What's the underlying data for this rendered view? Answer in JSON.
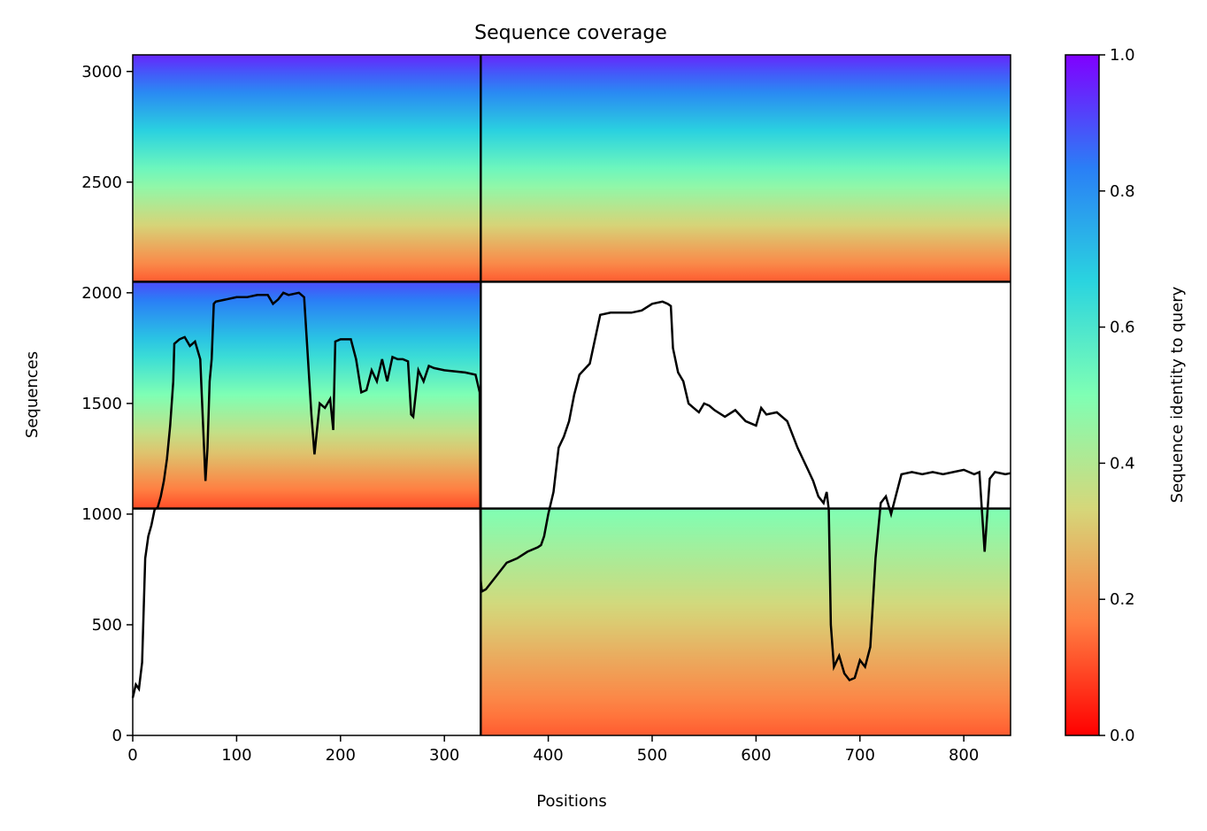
{
  "chart_data": {
    "type": "heatmap",
    "title": "Sequence coverage",
    "xlabel": "Positions",
    "ylabel": "Sequences",
    "xlim": [
      0,
      845
    ],
    "ylim": [
      0,
      3075
    ],
    "xticks": [
      0,
      100,
      200,
      300,
      400,
      500,
      600,
      700,
      800
    ],
    "yticks": [
      0,
      500,
      1000,
      1500,
      2000,
      2500,
      3000
    ],
    "colorbar": {
      "label": "Sequence identity to query",
      "range": [
        0,
        1
      ],
      "ticks": [
        0.0,
        0.2,
        0.4,
        0.6,
        0.8,
        1.0
      ],
      "tick_labels": [
        "0.0",
        "0.2",
        "0.4",
        "0.6",
        "0.8",
        "1.0"
      ],
      "colormap": [
        "#ff0000",
        "#ff7f42",
        "#d5d77a",
        "#7fffb4",
        "#2ad4df",
        "#2a7ff6",
        "#8000ff"
      ]
    },
    "block_boundaries": {
      "x": [
        335
      ],
      "y": [
        1025,
        2050
      ]
    },
    "coverage_blocks": [
      {
        "x": [
          0,
          335
        ],
        "y": [
          2050,
          3075
        ],
        "identity": [
          0.95,
          0.12
        ],
        "coverage_start": 0,
        "coverage_end": 335
      },
      {
        "x": [
          335,
          845
        ],
        "y": [
          2050,
          3075
        ],
        "identity": [
          0.95,
          0.12
        ],
        "coverage_start": 335,
        "coverage_end": 845
      },
      {
        "x": [
          0,
          335
        ],
        "y": [
          1025,
          2050
        ],
        "identity": [
          0.9,
          0.1
        ],
        "coverage_start": 0,
        "coverage_end": 335
      },
      {
        "x": [
          335,
          845
        ],
        "y": [
          0,
          1025
        ],
        "identity": [
          0.5,
          0.12
        ],
        "coverage_start": 335,
        "coverage_end": 845
      }
    ],
    "coverage_line": {
      "x": [
        0,
        3,
        6,
        9,
        12,
        15,
        18,
        21,
        24,
        27,
        30,
        33,
        36,
        39,
        40,
        45,
        50,
        55,
        60,
        65,
        70,
        72,
        74,
        76,
        78,
        80,
        90,
        100,
        110,
        120,
        130,
        135,
        140,
        145,
        150,
        160,
        165,
        170,
        172,
        175,
        180,
        185,
        190,
        193,
        195,
        200,
        210,
        215,
        220,
        225,
        230,
        235,
        240,
        245,
        250,
        255,
        260,
        265,
        268,
        270,
        275,
        280,
        285,
        290,
        300,
        310,
        320,
        330,
        334,
        335,
        336,
        340,
        350,
        360,
        370,
        380,
        390,
        393,
        396,
        400,
        405,
        410,
        415,
        420,
        425,
        430,
        440,
        450,
        460,
        480,
        490,
        500,
        510,
        515,
        518,
        520,
        525,
        530,
        535,
        540,
        545,
        550,
        555,
        560,
        570,
        580,
        590,
        600,
        605,
        610,
        620,
        630,
        640,
        645,
        650,
        655,
        660,
        665,
        668,
        670,
        672,
        675,
        680,
        685,
        690,
        695,
        700,
        705,
        710,
        715,
        720,
        725,
        730,
        740,
        750,
        760,
        770,
        780,
        790,
        800,
        810,
        815,
        820,
        825,
        830,
        840,
        845
      ],
      "y": [
        170,
        230,
        210,
        330,
        800,
        900,
        950,
        1020,
        1030,
        1080,
        1150,
        1250,
        1400,
        1600,
        1770,
        1790,
        1800,
        1760,
        1780,
        1700,
        1150,
        1300,
        1600,
        1700,
        1950,
        1960,
        1970,
        1980,
        1980,
        1990,
        1990,
        1950,
        1970,
        2000,
        1990,
        2000,
        1980,
        1600,
        1450,
        1270,
        1500,
        1480,
        1520,
        1380,
        1780,
        1790,
        1790,
        1700,
        1550,
        1560,
        1650,
        1600,
        1700,
        1600,
        1710,
        1700,
        1700,
        1690,
        1450,
        1440,
        1650,
        1600,
        1670,
        1660,
        1650,
        1645,
        1640,
        1630,
        1550,
        700,
        650,
        660,
        720,
        780,
        800,
        830,
        850,
        860,
        900,
        1000,
        1100,
        1300,
        1350,
        1420,
        1540,
        1630,
        1680,
        1900,
        1910,
        1910,
        1920,
        1950,
        1960,
        1950,
        1940,
        1750,
        1640,
        1600,
        1500,
        1480,
        1460,
        1500,
        1490,
        1470,
        1440,
        1470,
        1420,
        1400,
        1480,
        1450,
        1460,
        1420,
        1300,
        1250,
        1200,
        1150,
        1080,
        1050,
        1100,
        1020,
        500,
        310,
        360,
        280,
        250,
        260,
        340,
        310,
        400,
        800,
        1050,
        1080,
        1000,
        1180,
        1190,
        1180,
        1190,
        1180,
        1190,
        1200,
        1180,
        1190,
        830,
        1160,
        1190,
        1180,
        1185
      ]
    }
  }
}
